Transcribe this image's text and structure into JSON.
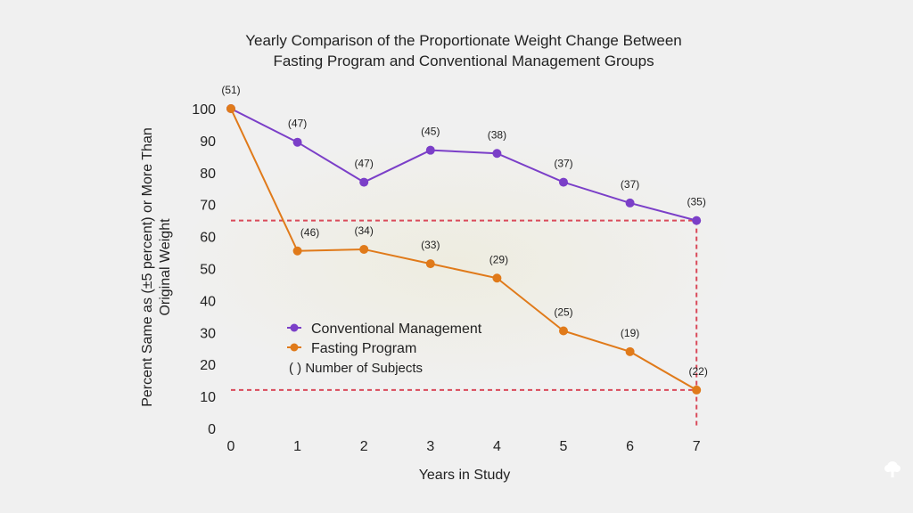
{
  "chart_data": {
    "type": "line",
    "title": "Yearly Comparison of the Proportionate Weight Change Between Fasting Program and Conventional Management Groups",
    "xlabel": "Years in Study",
    "ylabel": "Percent Same as (±5 percent) or More Than Original Weight",
    "x": [
      0,
      1,
      2,
      3,
      4,
      5,
      6,
      7
    ],
    "ylim": [
      0,
      100
    ],
    "yticks": [
      0,
      10,
      20,
      30,
      40,
      50,
      60,
      70,
      80,
      90,
      100
    ],
    "series": [
      {
        "name": "Conventional Management",
        "color": "#7b3fc8",
        "values": [
          100,
          89.5,
          77,
          87,
          86,
          77,
          70.5,
          65
        ],
        "labels": [
          "(51)",
          "(47)",
          "(47)",
          "(45)",
          "(38)",
          "(37)",
          "(37)",
          "(35)"
        ]
      },
      {
        "name": "Fasting Program",
        "color": "#e07a1a",
        "values": [
          100,
          55.5,
          56,
          51.5,
          47,
          30.5,
          24,
          12
        ],
        "labels": [
          "",
          "(46)",
          "(34)",
          "(33)",
          "(29)",
          "(25)",
          "(19)",
          "(22)"
        ]
      }
    ],
    "legend_extra": "(   ) Number of Subjects",
    "reference_lines": {
      "color": "#d94a5a",
      "values": [
        65,
        12
      ],
      "x": 7
    }
  }
}
